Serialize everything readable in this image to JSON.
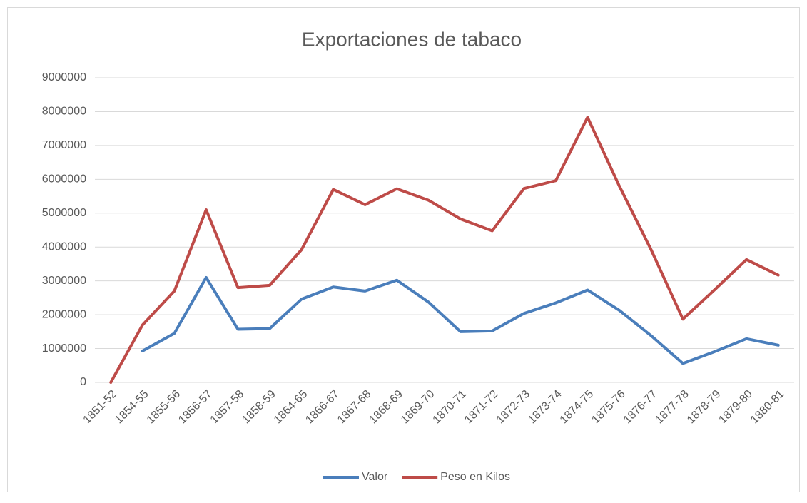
{
  "chart_data": {
    "type": "line",
    "title": "Exportaciones de tabaco",
    "categories": [
      "1851-52",
      "1854-55",
      "1855-56",
      "1856-57",
      "1857-58",
      "1858-59",
      "1864-65",
      "1866-67",
      "1867-68",
      "1868-69",
      "1869-70",
      "1870-71",
      "1871-72",
      "1872-73",
      "1873-74",
      "1874-75",
      "1875-76",
      "1876-77",
      "1877-78",
      "1878-79",
      "1879-80",
      "1880-81"
    ],
    "series": [
      {
        "name": "Valor",
        "color": "#4a7ebb",
        "values": [
          null,
          930000,
          1450000,
          3100000,
          1570000,
          1590000,
          2460000,
          2820000,
          2700000,
          3020000,
          2370000,
          1500000,
          1520000,
          2040000,
          2350000,
          2730000,
          2130000,
          1380000,
          560000,
          910000,
          1290000,
          1100000
        ]
      },
      {
        "name": "Peso en Kilos",
        "color": "#be4b48",
        "values": [
          0,
          1700000,
          2700000,
          5100000,
          2800000,
          2870000,
          3920000,
          5700000,
          5250000,
          5720000,
          5380000,
          4830000,
          4480000,
          5730000,
          5960000,
          7830000,
          5800000,
          3920000,
          1870000,
          2740000,
          3630000,
          3170000
        ]
      }
    ],
    "ylim": [
      0,
      9000000
    ],
    "yticks": [
      0,
      1000000,
      2000000,
      3000000,
      4000000,
      5000000,
      6000000,
      7000000,
      8000000,
      9000000
    ],
    "grid": true,
    "legend": "bottom"
  }
}
